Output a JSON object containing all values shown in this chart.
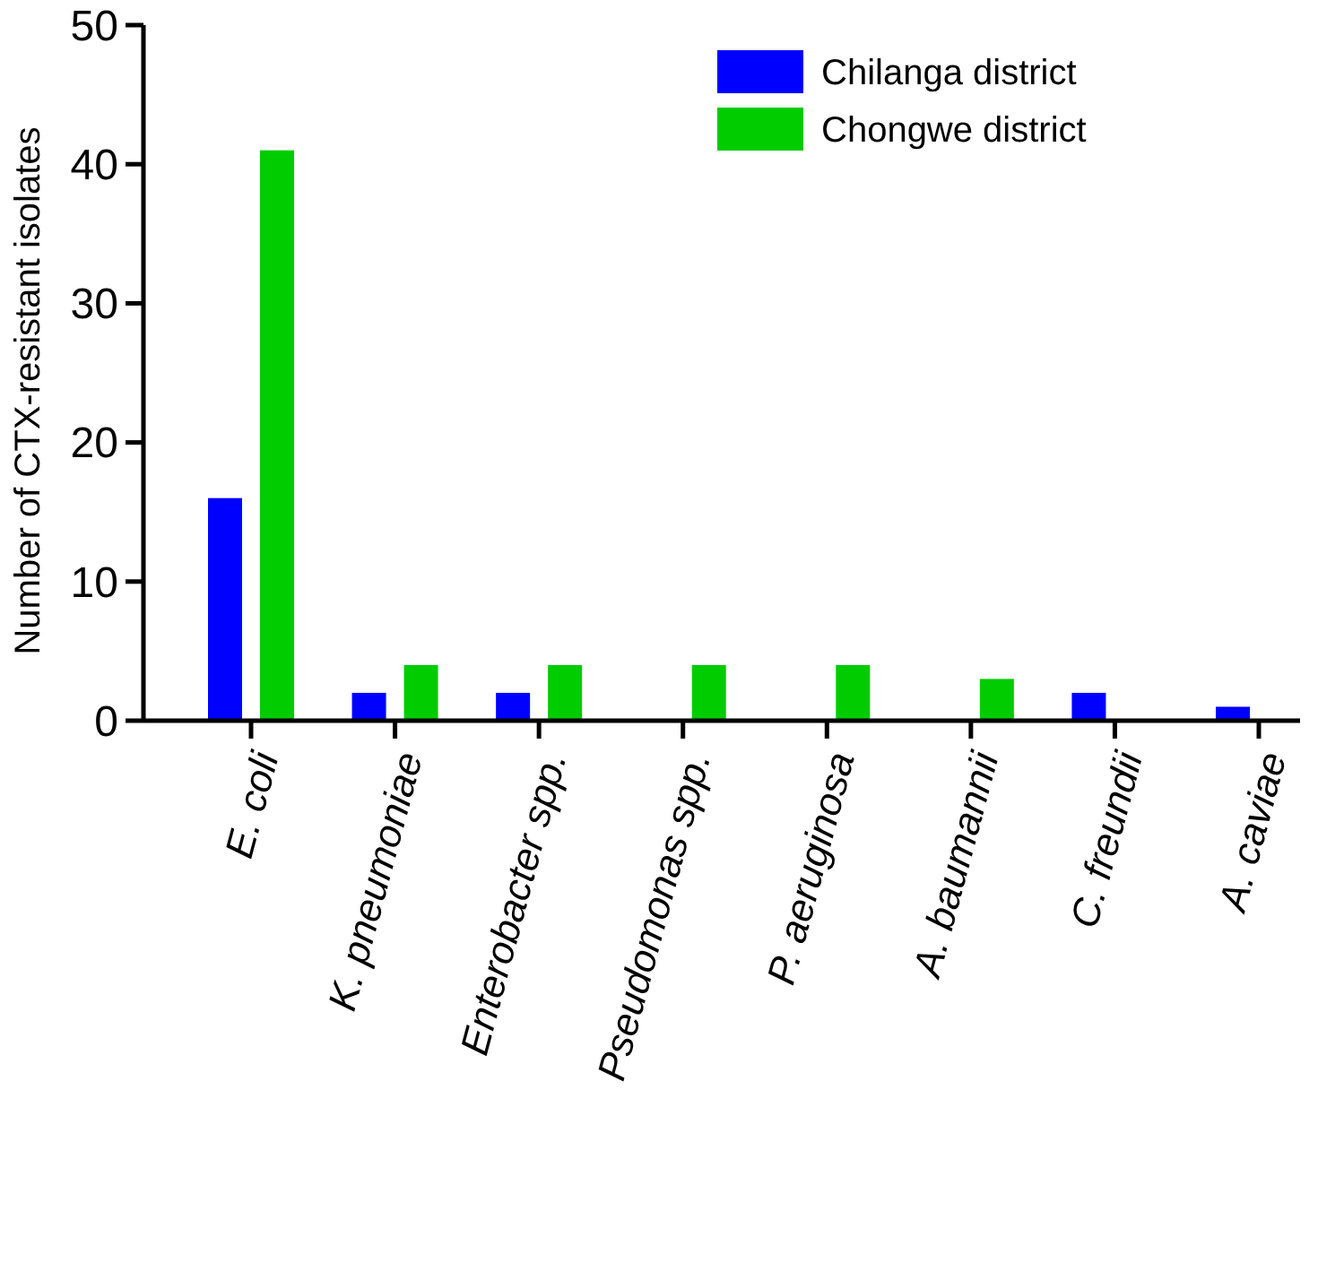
{
  "chart_data": {
    "type": "bar",
    "ylabel": "Number of CTX-resistant isolates",
    "categories": [
      "E. coli",
      "K. pneumoniae",
      "Enterobacter spp.",
      "Pseudomonas spp.",
      "P. aeruginosa",
      "A. baumannii",
      "C. freundii",
      "A. caviae"
    ],
    "series": [
      {
        "name": "Chilanga district",
        "color": "#0000ff",
        "values": [
          16,
          2,
          2,
          0,
          0,
          0,
          2,
          1
        ]
      },
      {
        "name": "Chongwe district",
        "color": "#00cc00",
        "values": [
          41,
          4,
          4,
          4,
          4,
          3,
          0,
          0
        ]
      }
    ],
    "ylim": [
      0,
      50
    ],
    "yticks": [
      0,
      10,
      20,
      30,
      40,
      50
    ],
    "grid": false,
    "legend": "top right"
  }
}
